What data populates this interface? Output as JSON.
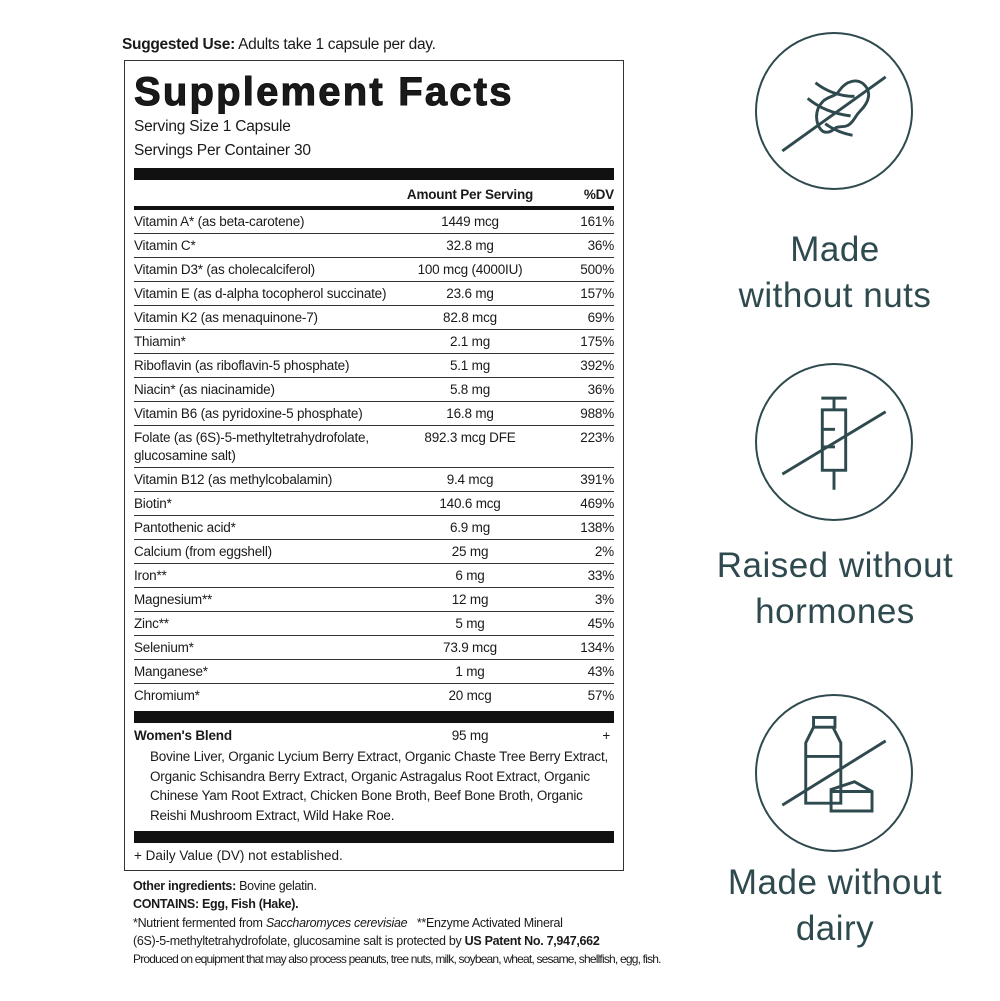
{
  "suggested_use": {
    "label": "Suggested Use:",
    "text": " Adults take 1 capsule per day."
  },
  "facts": {
    "title": "Supplement Facts",
    "serving_size": "Serving Size 1 Capsule",
    "servings_per_container": "Servings Per Container 30",
    "col_amount": "Amount Per Serving",
    "col_dv": "%DV",
    "rows": [
      {
        "name": "Vitamin A* (as beta-carotene)",
        "amount": "1449 mcg",
        "dv": "161%"
      },
      {
        "name": "Vitamin C*",
        "amount": "32.8 mg",
        "dv": "36%"
      },
      {
        "name": "Vitamin D3* (as cholecalciferol)",
        "amount": "100 mcg (4000IU)",
        "dv": "500%"
      },
      {
        "name": "Vitamin E (as d-alpha tocopherol succinate)",
        "amount": "23.6 mg",
        "dv": "157%"
      },
      {
        "name": "Vitamin K2 (as menaquinone-7)",
        "amount": "82.8 mcg",
        "dv": "69%"
      },
      {
        "name": "Thiamin*",
        "amount": "2.1 mg",
        "dv": "175%"
      },
      {
        "name": "Riboflavin (as riboflavin-5 phosphate)",
        "amount": "5.1 mg",
        "dv": "392%"
      },
      {
        "name": "Niacin* (as niacinamide)",
        "amount": "5.8 mg",
        "dv": "36%"
      },
      {
        "name": "Vitamin B6 (as pyridoxine-5 phosphate)",
        "amount": "16.8 mg",
        "dv": "988%"
      },
      {
        "name": "Folate (as (6S)-5-methyltetrahydrofolate, glucosamine salt)",
        "amount": "892.3 mcg DFE",
        "dv": "223%"
      },
      {
        "name": "Vitamin B12 (as methylcobalamin)",
        "amount": "9.4 mcg",
        "dv": "391%"
      },
      {
        "name": "Biotin*",
        "amount": "140.6 mcg",
        "dv": "469%"
      },
      {
        "name": "Pantothenic acid*",
        "amount": "6.9 mg",
        "dv": "138%"
      },
      {
        "name": "Calcium (from eggshell)",
        "amount": "25 mg",
        "dv": "2%"
      },
      {
        "name": "Iron**",
        "amount": "6 mg",
        "dv": "33%"
      },
      {
        "name": "Magnesium**",
        "amount": "12 mg",
        "dv": "3%"
      },
      {
        "name": "Zinc**",
        "amount": "5 mg",
        "dv": "45%"
      },
      {
        "name": "Selenium*",
        "amount": "73.9 mcg",
        "dv": "134%"
      },
      {
        "name": "Manganese*",
        "amount": "1 mg",
        "dv": "43%"
      },
      {
        "name": "Chromium*",
        "amount": "20 mcg",
        "dv": "57%"
      }
    ],
    "blend": {
      "name": "Women's Blend",
      "amount": "95 mg",
      "dv": "+",
      "ingredients": "Bovine Liver, Organic Lycium Berry Extract, Organic Chaste Tree Berry Extract, Organic Schisandra Berry Extract, Organic Astragalus Root Extract, Organic Chinese Yam Root Extract, Chicken Bone Broth, Beef Bone Broth, Organic Reishi Mushroom Extract, Wild Hake Roe."
    },
    "dv_note": "+ Daily Value (DV) not established."
  },
  "footer": {
    "other_label": "Other ingredients:",
    "other_text": " Bovine gelatin.",
    "contains": "CONTAINS: Egg, Fish (Hake).",
    "note1_a": "*Nutrient fermented from ",
    "note1_italic": "Saccharomyces cerevisiae",
    "note1_b": "   **Enzyme Activated Mineral",
    "note2_a": "(6S)-5-methyltetrahydrofolate, glucosamine salt is protected by ",
    "note2_bold": "US Patent No. 7,947,662",
    "allergen": "Produced on equipment that may also process peanuts, tree nuts, milk, soybean, wheat, sesame, shellfish, egg, fish."
  },
  "badges": [
    {
      "icon": "no-nuts-icon",
      "line1": "Made",
      "line2": "without nuts"
    },
    {
      "icon": "no-hormones-syringe-icon",
      "line1": "Raised without",
      "line2": "hormones"
    },
    {
      "icon": "no-dairy-icon",
      "line1": "Made without",
      "line2": "dairy"
    }
  ],
  "colors": {
    "badge": "#2f4a4e",
    "label": "#111111"
  }
}
